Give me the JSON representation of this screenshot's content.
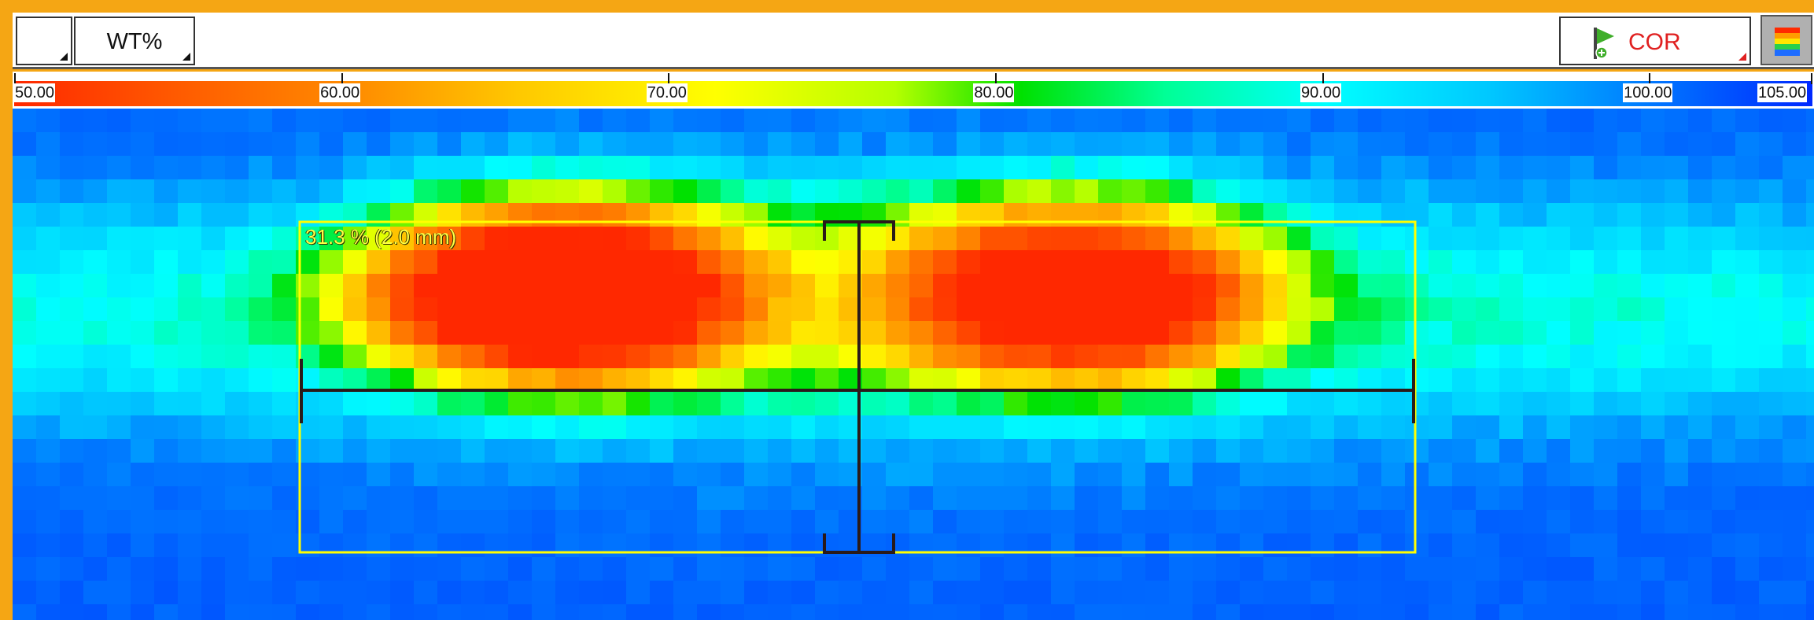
{
  "toolbar": {
    "blank_dropdown_label": "",
    "unit_dropdown_label": "WT%",
    "view_label": "COR"
  },
  "colorbar": {
    "min": 50,
    "max": 105,
    "ticks": [
      {
        "value": 50,
        "label": "50.00"
      },
      {
        "value": 60,
        "label": "60.00"
      },
      {
        "value": 70,
        "label": "70.00"
      },
      {
        "value": 80,
        "label": "80.00"
      },
      {
        "value": 90,
        "label": "90.00"
      },
      {
        "value": 100,
        "label": "100.00"
      },
      {
        "value": 105,
        "label": "105.00"
      }
    ]
  },
  "roi": {
    "label": "31.3 % (2.0 mm)",
    "box_color": "#ffff00",
    "cursor_color": "#2a1a1a"
  },
  "colors": {
    "frame": "#f5a614",
    "toolbar_background": "#ffffff",
    "alert_red": "#e02020"
  },
  "icons": {
    "view_flag": "green-flag-icon",
    "palette": "rainbow-palette-icon"
  }
}
